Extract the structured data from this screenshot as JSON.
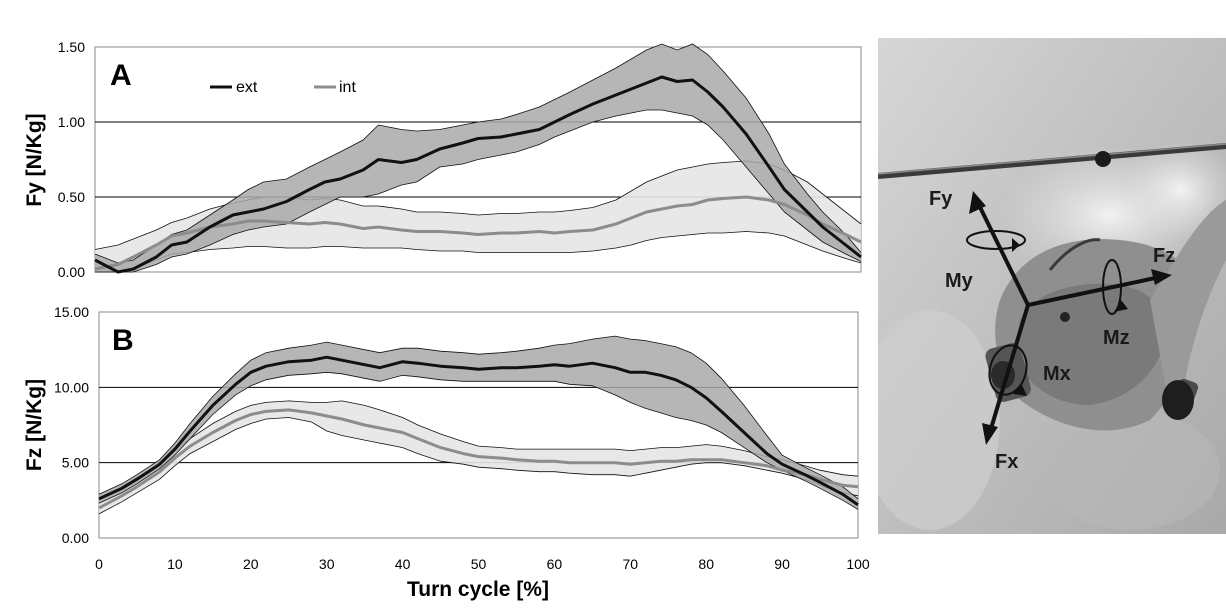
{
  "chart_data": [
    {
      "type": "line",
      "panel_label": "A",
      "ylabel": "Fy [N/Kg]",
      "xlabel": "",
      "xlim": [
        0,
        100
      ],
      "ylim": [
        0,
        1.5
      ],
      "y_ticks": [
        "0.00",
        "0.50",
        "1.00",
        "1.50"
      ],
      "x_ticks": [],
      "gridlines": "horizontal",
      "legend": {
        "placement": "top-left",
        "entries": [
          "ext",
          "int"
        ]
      },
      "x": [
        0,
        3,
        5,
        8,
        10,
        12,
        15,
        18,
        20,
        22,
        25,
        28,
        30,
        32,
        35,
        37,
        40,
        42,
        45,
        48,
        50,
        53,
        55,
        58,
        60,
        62,
        65,
        68,
        70,
        72,
        74,
        76,
        78,
        80,
        82,
        85,
        88,
        90,
        93,
        95,
        98,
        100
      ],
      "series": [
        {
          "name": "ext",
          "color": "#111111",
          "values": [
            0.08,
            0.0,
            0.02,
            0.1,
            0.18,
            0.2,
            0.3,
            0.38,
            0.4,
            0.42,
            0.47,
            0.55,
            0.6,
            0.62,
            0.68,
            0.75,
            0.73,
            0.75,
            0.82,
            0.86,
            0.89,
            0.9,
            0.92,
            0.95,
            1.0,
            1.05,
            1.12,
            1.18,
            1.22,
            1.26,
            1.3,
            1.27,
            1.28,
            1.2,
            1.1,
            0.92,
            0.7,
            0.55,
            0.4,
            0.3,
            0.18,
            0.1
          ],
          "band_low": [
            0.0,
            0.0,
            0.0,
            0.05,
            0.1,
            0.12,
            0.18,
            0.25,
            0.28,
            0.3,
            0.32,
            0.4,
            0.45,
            0.5,
            0.5,
            0.52,
            0.58,
            0.6,
            0.7,
            0.72,
            0.75,
            0.78,
            0.8,
            0.85,
            0.9,
            0.94,
            1.0,
            1.04,
            1.06,
            1.08,
            1.08,
            1.06,
            1.04,
            0.98,
            0.88,
            0.7,
            0.52,
            0.4,
            0.28,
            0.2,
            0.12,
            0.07
          ],
          "band_high": [
            0.12,
            0.06,
            0.08,
            0.18,
            0.25,
            0.28,
            0.38,
            0.48,
            0.55,
            0.6,
            0.62,
            0.7,
            0.75,
            0.8,
            0.88,
            0.98,
            0.95,
            0.94,
            0.95,
            0.98,
            1.0,
            1.02,
            1.05,
            1.1,
            1.15,
            1.2,
            1.28,
            1.36,
            1.42,
            1.48,
            1.52,
            1.48,
            1.52,
            1.45,
            1.34,
            1.16,
            0.92,
            0.72,
            0.52,
            0.4,
            0.25,
            0.13
          ]
        },
        {
          "name": "int",
          "color": "#8c8c8c",
          "values": [
            0.02,
            0.05,
            0.1,
            0.18,
            0.24,
            0.26,
            0.3,
            0.32,
            0.34,
            0.34,
            0.33,
            0.32,
            0.33,
            0.32,
            0.29,
            0.3,
            0.28,
            0.27,
            0.27,
            0.26,
            0.25,
            0.26,
            0.26,
            0.27,
            0.26,
            0.27,
            0.28,
            0.32,
            0.36,
            0.4,
            0.42,
            0.44,
            0.45,
            0.48,
            0.49,
            0.5,
            0.48,
            0.45,
            0.38,
            0.32,
            0.25,
            0.2
          ],
          "band_low": [
            0.0,
            0.0,
            0.02,
            0.08,
            0.12,
            0.13,
            0.15,
            0.16,
            0.17,
            0.17,
            0.16,
            0.16,
            0.17,
            0.17,
            0.16,
            0.16,
            0.16,
            0.15,
            0.14,
            0.14,
            0.13,
            0.13,
            0.13,
            0.13,
            0.13,
            0.13,
            0.14,
            0.16,
            0.18,
            0.21,
            0.23,
            0.24,
            0.25,
            0.26,
            0.26,
            0.27,
            0.26,
            0.24,
            0.18,
            0.14,
            0.09,
            0.06
          ],
          "band_high": [
            0.15,
            0.18,
            0.22,
            0.28,
            0.33,
            0.36,
            0.42,
            0.46,
            0.48,
            0.5,
            0.5,
            0.48,
            0.49,
            0.48,
            0.44,
            0.44,
            0.42,
            0.4,
            0.4,
            0.39,
            0.38,
            0.39,
            0.39,
            0.4,
            0.4,
            0.41,
            0.43,
            0.48,
            0.54,
            0.6,
            0.64,
            0.68,
            0.7,
            0.72,
            0.73,
            0.74,
            0.72,
            0.68,
            0.6,
            0.52,
            0.4,
            0.32
          ]
        }
      ]
    },
    {
      "type": "line",
      "panel_label": "B",
      "ylabel": "Fz [N/Kg]",
      "xlabel": "Turn cycle [%]",
      "xlim": [
        0,
        100
      ],
      "ylim": [
        0,
        15
      ],
      "y_ticks": [
        "0.00",
        "5.00",
        "10.00",
        "15.00"
      ],
      "x_ticks": [
        "0",
        "10",
        "20",
        "30",
        "40",
        "50",
        "60",
        "70",
        "80",
        "90",
        "100"
      ],
      "gridlines": "horizontal",
      "x": [
        0,
        3,
        5,
        8,
        10,
        12,
        15,
        18,
        20,
        22,
        25,
        28,
        30,
        32,
        35,
        37,
        40,
        42,
        45,
        48,
        50,
        53,
        55,
        58,
        60,
        62,
        65,
        68,
        70,
        72,
        74,
        76,
        78,
        80,
        82,
        85,
        88,
        90,
        93,
        95,
        98,
        100
      ],
      "series": [
        {
          "name": "ext",
          "color": "#111111",
          "values": [
            2.6,
            3.3,
            3.9,
            4.9,
            5.9,
            7.1,
            8.8,
            10.2,
            11.0,
            11.4,
            11.7,
            11.8,
            12.0,
            11.8,
            11.5,
            11.3,
            11.7,
            11.6,
            11.4,
            11.3,
            11.2,
            11.3,
            11.3,
            11.4,
            11.5,
            11.4,
            11.6,
            11.3,
            11.0,
            11.0,
            10.8,
            10.5,
            10.0,
            9.3,
            8.4,
            7.0,
            5.6,
            4.9,
            4.2,
            3.7,
            2.9,
            2.2
          ],
          "band_low": [
            2.3,
            3.0,
            3.6,
            4.6,
            5.5,
            6.6,
            8.2,
            9.5,
            10.1,
            10.5,
            10.8,
            10.9,
            11.0,
            10.9,
            10.6,
            10.4,
            10.8,
            10.7,
            10.5,
            10.4,
            10.4,
            10.4,
            10.4,
            10.4,
            10.4,
            10.2,
            10.1,
            9.5,
            9.0,
            8.6,
            8.3,
            8.0,
            7.8,
            7.5,
            7.0,
            6.0,
            5.0,
            4.5,
            3.8,
            3.3,
            2.5,
            1.9
          ],
          "band_high": [
            2.9,
            3.6,
            4.2,
            5.2,
            6.3,
            7.6,
            9.4,
            10.9,
            11.8,
            12.3,
            12.6,
            12.8,
            13.0,
            12.8,
            12.5,
            12.3,
            12.6,
            12.6,
            12.4,
            12.3,
            12.2,
            12.3,
            12.4,
            12.6,
            12.8,
            12.9,
            13.2,
            13.4,
            13.2,
            13.1,
            12.9,
            12.7,
            12.3,
            11.6,
            10.6,
            8.8,
            6.8,
            5.5,
            4.7,
            4.2,
            3.4,
            2.6
          ]
        },
        {
          "name": "int",
          "color": "#8c8c8c",
          "values": [
            2.0,
            2.8,
            3.4,
            4.4,
            5.3,
            6.1,
            7.0,
            7.8,
            8.2,
            8.4,
            8.5,
            8.3,
            8.1,
            7.9,
            7.5,
            7.3,
            7.0,
            6.6,
            6.0,
            5.6,
            5.4,
            5.3,
            5.2,
            5.1,
            5.1,
            5.0,
            5.0,
            5.0,
            4.9,
            5.0,
            5.1,
            5.1,
            5.2,
            5.2,
            5.2,
            5.0,
            4.8,
            4.5,
            4.2,
            3.9,
            3.5,
            3.4
          ],
          "band_low": [
            1.6,
            2.4,
            3.0,
            3.9,
            4.8,
            5.6,
            6.4,
            7.2,
            7.6,
            7.9,
            8.0,
            7.7,
            7.1,
            6.8,
            6.5,
            6.3,
            6.0,
            5.6,
            5.1,
            4.9,
            4.7,
            4.6,
            4.5,
            4.4,
            4.4,
            4.3,
            4.2,
            4.2,
            4.1,
            4.3,
            4.5,
            4.7,
            4.9,
            5.0,
            5.0,
            4.8,
            4.5,
            4.3,
            3.9,
            3.5,
            3.0,
            2.8
          ],
          "band_high": [
            2.5,
            3.2,
            3.8,
            4.8,
            5.8,
            6.6,
            7.6,
            8.4,
            8.8,
            9.0,
            9.1,
            9.0,
            9.0,
            9.1,
            8.8,
            8.5,
            8.0,
            7.5,
            6.9,
            6.4,
            6.1,
            6.0,
            5.9,
            5.9,
            5.9,
            5.9,
            5.9,
            5.9,
            5.8,
            5.9,
            6.0,
            6.0,
            6.1,
            6.2,
            6.1,
            5.8,
            5.4,
            5.2,
            4.8,
            4.5,
            4.2,
            4.1
          ]
        }
      ]
    }
  ],
  "photo": {
    "labels": [
      "Fy",
      "My",
      "Fz",
      "Mz",
      "Mx",
      "Fx"
    ]
  }
}
